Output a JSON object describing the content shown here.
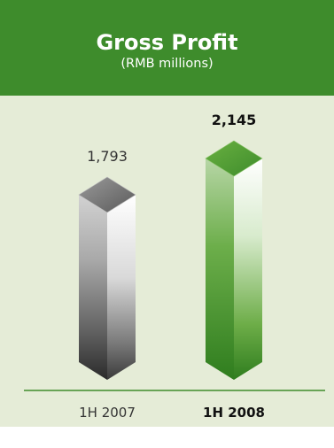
{
  "header": {
    "title": "Gross Profit",
    "subtitle": "(RMB millions)"
  },
  "colors": {
    "header_bg": "#3e8c2c",
    "panel_bg": "#e5ecd7",
    "baseline": "#3e8c2c",
    "bar_2007": "grey",
    "bar_2008": "green"
  },
  "chart_data": {
    "type": "bar",
    "style": "3d-prism",
    "categories": [
      "1H 2007",
      "1H 2008"
    ],
    "values": [
      1793,
      2145
    ],
    "value_labels": [
      "1,793",
      "2,145"
    ],
    "highlight_category": "1H 2008",
    "title": "Gross Profit",
    "subtitle": "(RMB millions)",
    "xlabel": "",
    "ylabel": "",
    "grid": false,
    "legend": "none"
  }
}
